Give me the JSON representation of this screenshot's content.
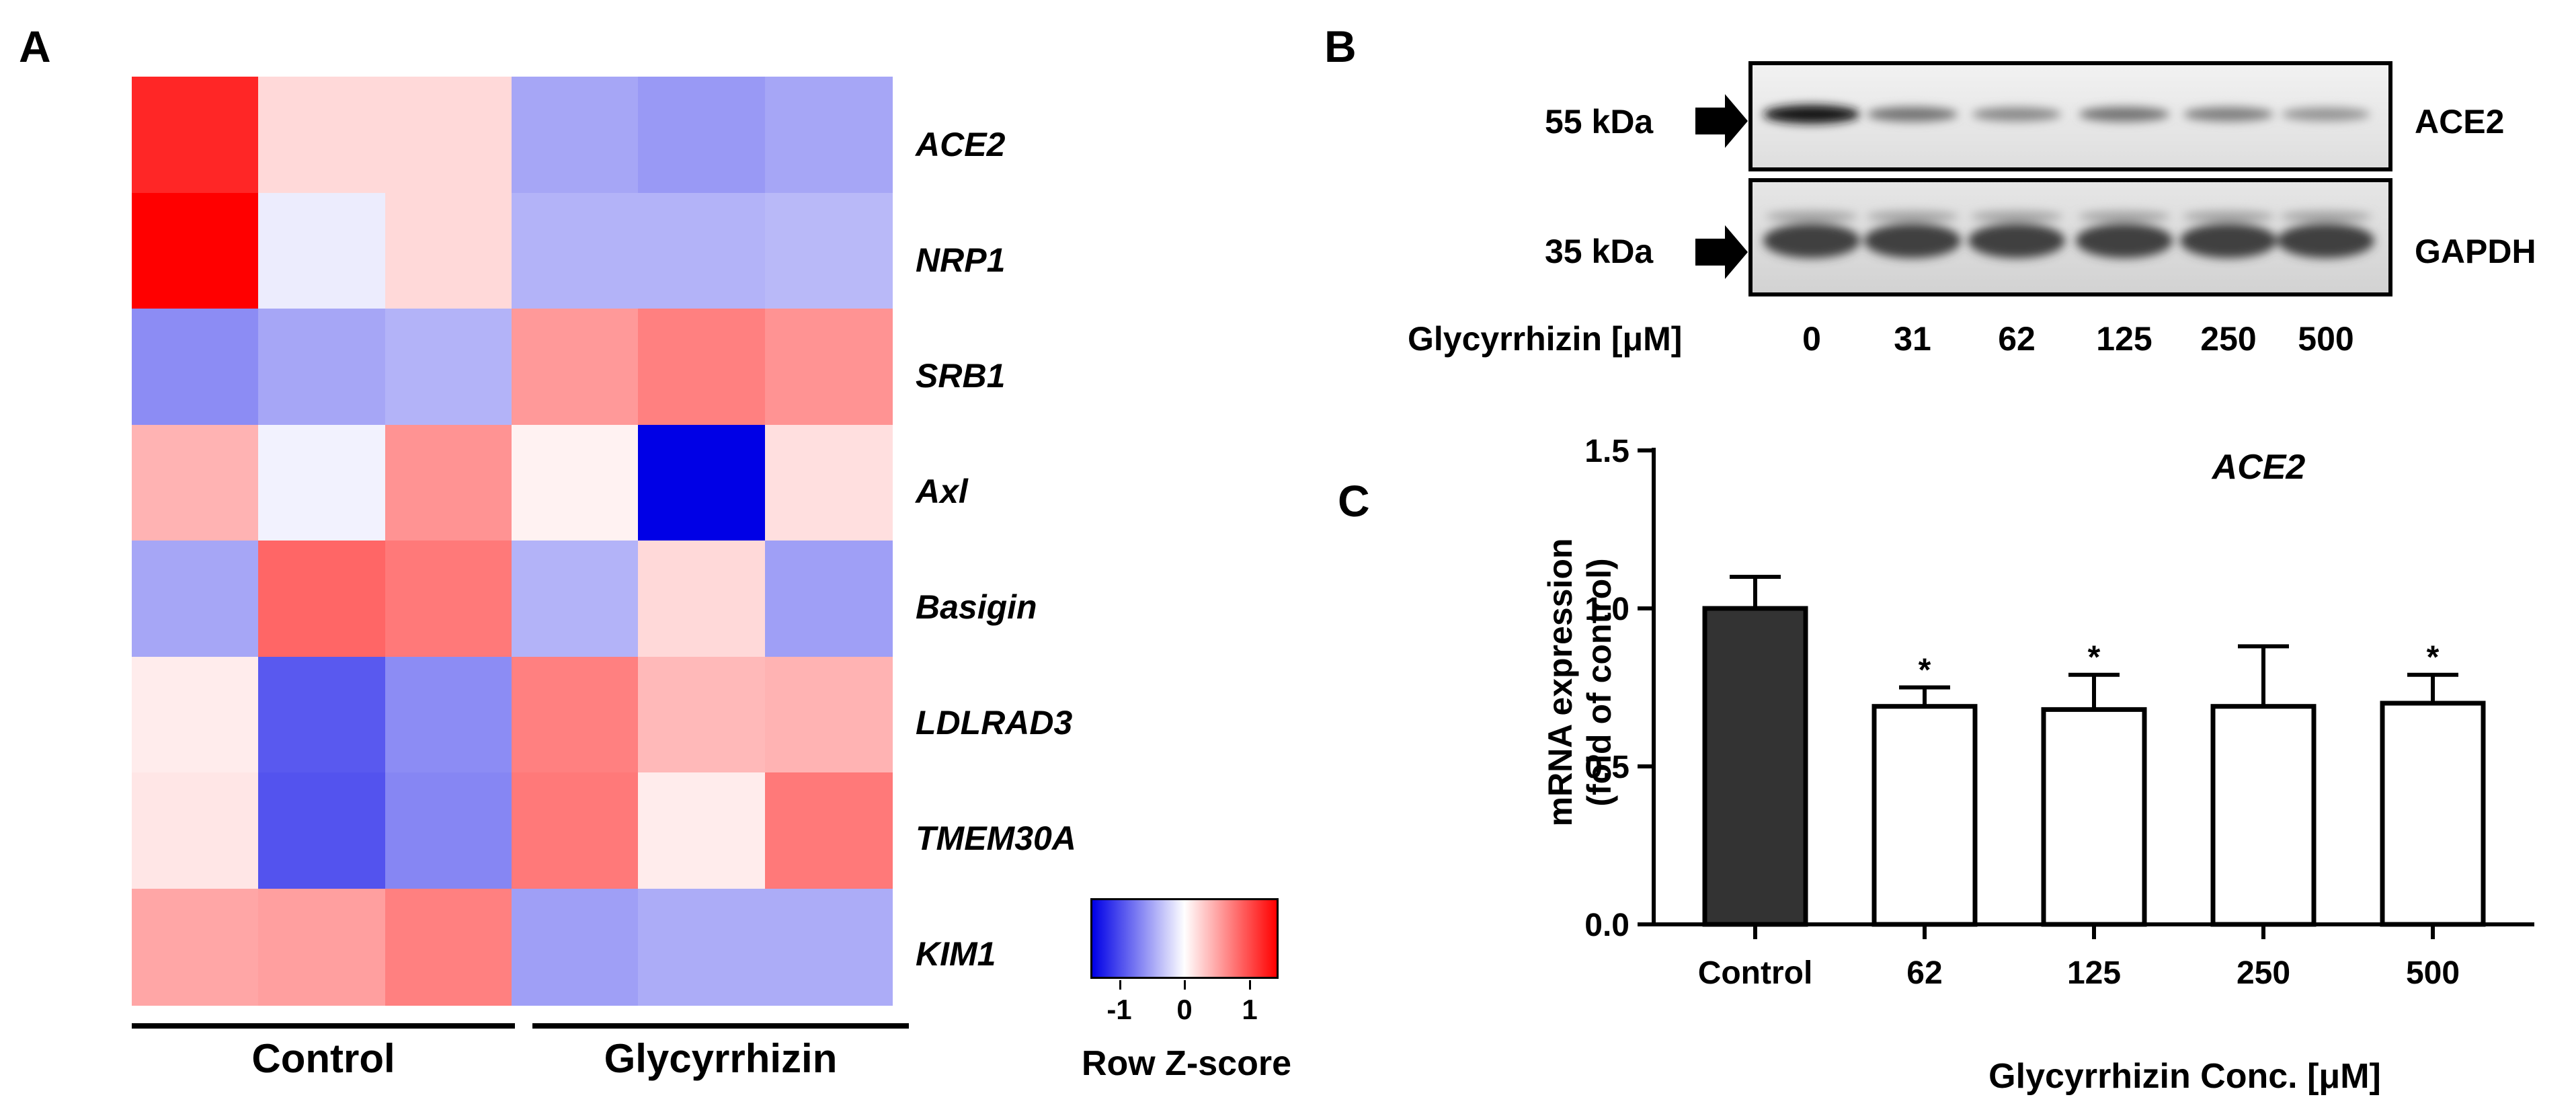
{
  "panels": {
    "a": "A",
    "b": "B",
    "c": "C"
  },
  "chart_data": [
    {
      "type": "heatmap",
      "panel": "A",
      "rows": [
        "ACE2",
        "NRP1",
        "SRB1",
        "Axl",
        "Basigin",
        "LDLRAD3",
        "TMEM30A",
        "KIM1"
      ],
      "groups": [
        {
          "name": "Control",
          "columns": 3
        },
        {
          "name": "Glycyrrhizin",
          "columns": 3
        }
      ],
      "z": [
        [
          1.7,
          0.3,
          0.3,
          -0.7,
          -0.8,
          -0.7
        ],
        [
          2.0,
          -0.15,
          0.3,
          -0.6,
          -0.6,
          -0.55
        ],
        [
          -0.9,
          -0.7,
          -0.6,
          0.8,
          1.0,
          0.85
        ],
        [
          0.6,
          -0.1,
          0.85,
          0.1,
          -2.2,
          0.25
        ],
        [
          -0.7,
          1.2,
          1.05,
          -0.6,
          0.3,
          -0.75
        ],
        [
          0.15,
          -1.3,
          -0.9,
          1.0,
          0.55,
          0.6
        ],
        [
          0.2,
          -1.35,
          -0.95,
          1.05,
          0.15,
          1.05
        ],
        [
          0.7,
          0.75,
          1.0,
          -0.75,
          -0.65,
          -0.65
        ]
      ],
      "legend": {
        "title": "Row Z-score",
        "ticks": [
          "-1",
          "0",
          "1"
        ],
        "tick_values": [
          -1,
          0,
          1
        ],
        "range": [
          -2,
          2
        ],
        "colors": {
          "low": "#0000e6",
          "mid": "#ffffff",
          "high": "#ff0000"
        }
      }
    },
    {
      "type": "table",
      "panel": "B",
      "description": "Western blot",
      "bands": [
        {
          "marker": "55 kDa",
          "protein": "ACE2",
          "intensities": [
            1.0,
            0.55,
            0.45,
            0.55,
            0.5,
            0.4
          ]
        },
        {
          "marker": "35 kDa",
          "protein": "GAPDH",
          "intensities": [
            1.0,
            1.0,
            1.0,
            1.0,
            1.0,
            1.0
          ]
        }
      ],
      "x_label": "Glycyrrhizin [μM]",
      "lanes": [
        "0",
        "31",
        "62",
        "125",
        "250",
        "500"
      ]
    },
    {
      "type": "bar",
      "panel": "C",
      "title": "ACE2",
      "categories": [
        "Control",
        "62",
        "125",
        "250",
        "500"
      ],
      "values": [
        1.0,
        0.69,
        0.68,
        0.69,
        0.7
      ],
      "errors": [
        0.1,
        0.06,
        0.11,
        0.19,
        0.09
      ],
      "significance": [
        "",
        "*",
        "*",
        "",
        "*"
      ],
      "fill": [
        "#333333",
        "#ffffff",
        "#ffffff",
        "#ffffff",
        "#ffffff"
      ],
      "ylabel_lines": [
        "mRNA expression",
        "(fold of control)"
      ],
      "xlabel": "Glycyrrhizin Conc. [μM]",
      "ylim": [
        0,
        1.5
      ],
      "yticks": [
        0.0,
        0.5,
        1.0,
        1.5
      ],
      "ytick_labels": [
        "0.0",
        "0.5",
        "1.0",
        "1.5"
      ]
    }
  ]
}
